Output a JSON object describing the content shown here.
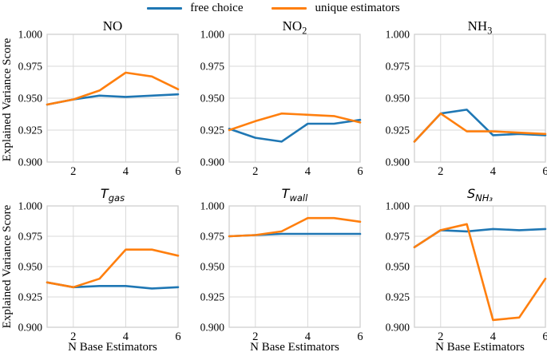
{
  "style": {
    "grid_color": "#d9d9d9",
    "spine_color": "#cfcfcf",
    "tick_color": "#000000",
    "line_width": 2.6
  },
  "legend": {
    "items": [
      {
        "label": "free choice",
        "color": "#1f77b4"
      },
      {
        "label": "unique estimators",
        "color": "#ff7f0e"
      }
    ]
  },
  "axes": {
    "ylabel": "Explained Variance Score",
    "xlabel": "N Base Estimators",
    "xlim": [
      1,
      6
    ],
    "ylim": [
      0.9,
      1.0
    ],
    "x_ticks": [
      "2",
      "4",
      "6"
    ],
    "y_ticks": [
      "1.000",
      "0.975",
      "0.950",
      "0.925",
      "0.900"
    ],
    "x_gridlines": [
      2,
      4
    ],
    "y_gridlines": [
      0.925,
      0.95,
      0.975
    ],
    "grid": true
  },
  "chart_data": [
    {
      "type": "line",
      "label": "NO",
      "title": {
        "base": "NO",
        "sub": ""
      },
      "x": [
        1,
        2,
        3,
        4,
        5,
        6
      ],
      "series": [
        {
          "name": "free choice",
          "color": "#1f77b4",
          "values": [
            0.945,
            0.949,
            0.952,
            0.951,
            0.952,
            0.953
          ]
        },
        {
          "name": "unique estimators",
          "color": "#ff7f0e",
          "values": [
            0.945,
            0.949,
            0.956,
            0.97,
            0.967,
            0.957
          ]
        }
      ]
    },
    {
      "type": "line",
      "label": "NO2",
      "title": {
        "base": "NO",
        "sub": "2"
      },
      "x": [
        1,
        2,
        3,
        4,
        5,
        6
      ],
      "series": [
        {
          "name": "free choice",
          "color": "#1f77b4",
          "values": [
            0.926,
            0.919,
            0.916,
            0.93,
            0.93,
            0.933
          ]
        },
        {
          "name": "unique estimators",
          "color": "#ff7f0e",
          "values": [
            0.925,
            0.932,
            0.938,
            0.937,
            0.936,
            0.931
          ]
        }
      ]
    },
    {
      "type": "line",
      "label": "NH3",
      "title": {
        "base": "NH",
        "sub": "3"
      },
      "x": [
        1,
        2,
        3,
        4,
        5,
        6
      ],
      "series": [
        {
          "name": "free choice",
          "color": "#1f77b4",
          "values": [
            0.916,
            0.938,
            0.941,
            0.921,
            0.922,
            0.921
          ]
        },
        {
          "name": "unique estimators",
          "color": "#ff7f0e",
          "values": [
            0.916,
            0.938,
            0.924,
            0.924,
            0.923,
            0.922
          ]
        }
      ]
    },
    {
      "type": "line",
      "label": "T_gas",
      "title": {
        "base": "T",
        "sub": "gas"
      },
      "x": [
        1,
        2,
        3,
        4,
        5,
        6
      ],
      "series": [
        {
          "name": "free choice",
          "color": "#1f77b4",
          "values": [
            0.937,
            0.933,
            0.934,
            0.934,
            0.932,
            0.933
          ]
        },
        {
          "name": "unique estimators",
          "color": "#ff7f0e",
          "values": [
            0.937,
            0.933,
            0.94,
            0.964,
            0.964,
            0.959
          ]
        }
      ]
    },
    {
      "type": "line",
      "label": "T_wall",
      "title": {
        "base": "T",
        "sub": "wall"
      },
      "x": [
        1,
        2,
        3,
        4,
        5,
        6
      ],
      "series": [
        {
          "name": "free choice",
          "color": "#1f77b4",
          "values": [
            0.975,
            0.976,
            0.977,
            0.977,
            0.977,
            0.977
          ]
        },
        {
          "name": "unique estimators",
          "color": "#ff7f0e",
          "values": [
            0.975,
            0.976,
            0.979,
            0.99,
            0.99,
            0.987
          ]
        }
      ]
    },
    {
      "type": "line",
      "label": "S_NH3",
      "title": {
        "base": "S",
        "sub": "NH₃"
      },
      "x": [
        1,
        2,
        3,
        4,
        5,
        6
      ],
      "series": [
        {
          "name": "free choice",
          "color": "#1f77b4",
          "values": [
            0.966,
            0.98,
            0.979,
            0.981,
            0.98,
            0.981
          ]
        },
        {
          "name": "unique estimators",
          "color": "#ff7f0e",
          "values": [
            0.966,
            0.98,
            0.985,
            0.906,
            0.908,
            0.94
          ]
        }
      ]
    }
  ]
}
